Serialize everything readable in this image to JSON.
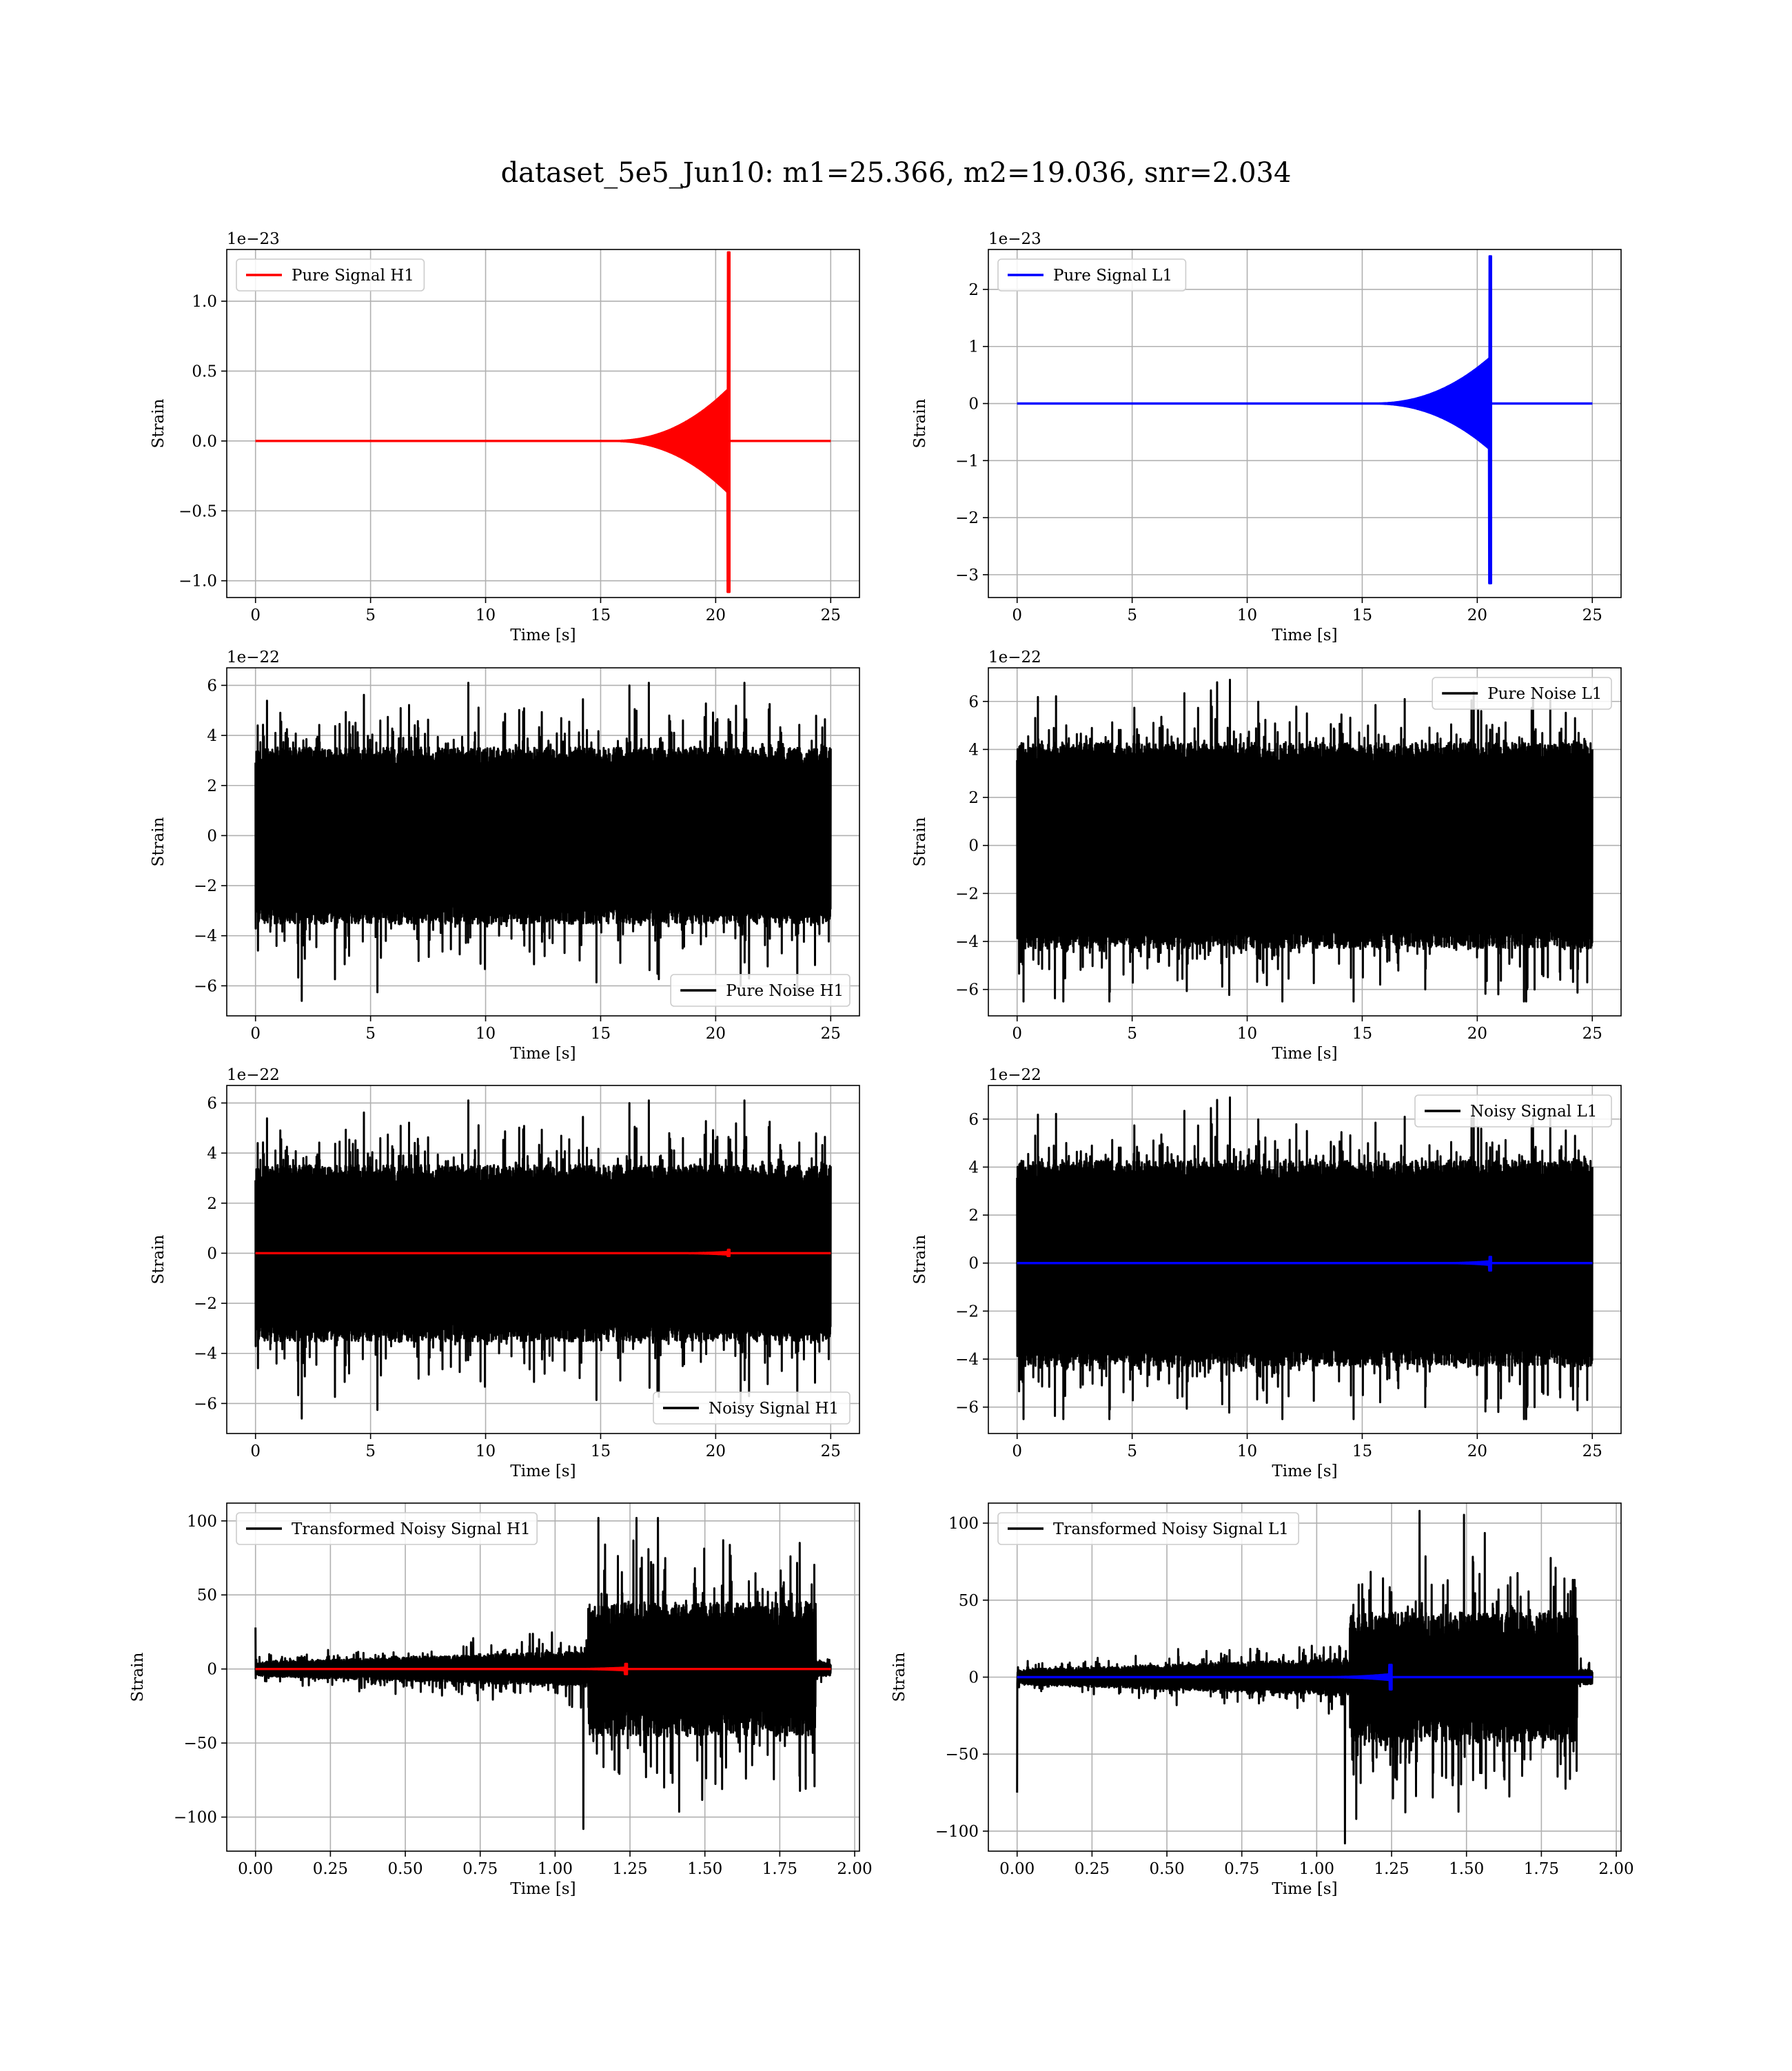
{
  "figure": {
    "title": "dataset_5e5_Jun10: m1=25.366, m2=19.036, snr=2.034"
  },
  "chart_data": [
    {
      "type": "line",
      "panel": "row1-left",
      "title": "",
      "xlabel": "Time [s]",
      "ylabel": "Strain",
      "offset_text": "1e−23",
      "xlim": [
        -1.25,
        26.25
      ],
      "ylim": [
        -1.12,
        1.37
      ],
      "xticks": [
        0,
        5,
        10,
        15,
        20,
        25
      ],
      "xtick_labels": [
        "0",
        "5",
        "10",
        "15",
        "20",
        "25"
      ],
      "yticks": [
        -1.0,
        -0.5,
        0.0,
        0.5,
        1.0
      ],
      "ytick_labels": [
        "−1.0",
        "−0.5",
        "0.0",
        "0.5",
        "1.0"
      ],
      "grid": true,
      "legend_position": "top-left",
      "series": [
        {
          "name": "Pure Signal H1",
          "color": "#ff0000",
          "kind": "chirp",
          "t0": 0,
          "t1": 25,
          "tmerge": 20.6,
          "tstart": 15.5,
          "peak_pos": 1.35,
          "peak_neg": -1.08,
          "env": 0.38
        }
      ]
    },
    {
      "type": "line",
      "panel": "row1-right",
      "title": "",
      "xlabel": "Time [s]",
      "ylabel": "Strain",
      "offset_text": "1e−23",
      "xlim": [
        -1.25,
        26.25
      ],
      "ylim": [
        -3.4,
        2.7
      ],
      "xticks": [
        0,
        5,
        10,
        15,
        20,
        25
      ],
      "xtick_labels": [
        "0",
        "5",
        "10",
        "15",
        "20",
        "25"
      ],
      "yticks": [
        -3,
        -2,
        -1,
        0,
        1,
        2
      ],
      "ytick_labels": [
        "−3",
        "−2",
        "−1",
        "0",
        "1",
        "2"
      ],
      "grid": true,
      "legend_position": "top-left",
      "series": [
        {
          "name": "Pure Signal L1",
          "color": "#0000ff",
          "kind": "chirp",
          "t0": 0,
          "t1": 25,
          "tmerge": 20.6,
          "tstart": 15.5,
          "peak_pos": 2.58,
          "peak_neg": -3.15,
          "env": 0.82
        }
      ]
    },
    {
      "type": "line",
      "panel": "row2-left",
      "title": "",
      "xlabel": "Time [s]",
      "ylabel": "Strain",
      "offset_text": "1e−22",
      "xlim": [
        -1.25,
        26.25
      ],
      "ylim": [
        -7.2,
        6.7
      ],
      "xticks": [
        0,
        5,
        10,
        15,
        20,
        25
      ],
      "xtick_labels": [
        "0",
        "5",
        "10",
        "15",
        "20",
        "25"
      ],
      "yticks": [
        -6,
        -4,
        -2,
        0,
        2,
        4,
        6
      ],
      "ytick_labels": [
        "−6",
        "−4",
        "−2",
        "0",
        "2",
        "4",
        "6"
      ],
      "grid": true,
      "legend_position": "bottom-right",
      "series": [
        {
          "name": "Pure Noise H1",
          "color": "#000000",
          "kind": "noise",
          "t0": 0,
          "t1": 25,
          "core": 3.2,
          "spike_max": 6.1,
          "spike_min": -6.6,
          "seed": 11
        }
      ]
    },
    {
      "type": "line",
      "panel": "row2-right",
      "title": "",
      "xlabel": "Time [s]",
      "ylabel": "Strain",
      "offset_text": "1e−22",
      "xlim": [
        -1.25,
        26.25
      ],
      "ylim": [
        -7.1,
        7.4
      ],
      "xticks": [
        0,
        5,
        10,
        15,
        20,
        25
      ],
      "xtick_labels": [
        "0",
        "5",
        "10",
        "15",
        "20",
        "25"
      ],
      "yticks": [
        -6,
        -4,
        -2,
        0,
        2,
        4,
        6
      ],
      "ytick_labels": [
        "−6",
        "−4",
        "−2",
        "0",
        "2",
        "4",
        "6"
      ],
      "grid": true,
      "legend_position": "top-right",
      "series": [
        {
          "name": "Pure Noise L1",
          "color": "#000000",
          "kind": "noise",
          "t0": 0,
          "t1": 25,
          "core": 3.9,
          "spike_max": 6.9,
          "spike_min": -6.5,
          "seed": 23
        }
      ]
    },
    {
      "type": "line",
      "panel": "row3-left",
      "title": "",
      "xlabel": "Time [s]",
      "ylabel": "Strain",
      "offset_text": "1e−22",
      "xlim": [
        -1.25,
        26.25
      ],
      "ylim": [
        -7.2,
        6.7
      ],
      "xticks": [
        0,
        5,
        10,
        15,
        20,
        25
      ],
      "xtick_labels": [
        "0",
        "5",
        "10",
        "15",
        "20",
        "25"
      ],
      "yticks": [
        -6,
        -4,
        -2,
        0,
        2,
        4,
        6
      ],
      "ytick_labels": [
        "−6",
        "−4",
        "−2",
        "0",
        "2",
        "4",
        "6"
      ],
      "grid": true,
      "legend_position": "bottom-right",
      "series": [
        {
          "name": "Noisy Signal H1",
          "color": "#000000",
          "kind": "noise",
          "t0": 0,
          "t1": 25,
          "core": 3.2,
          "spike_max": 6.1,
          "spike_min": -6.6,
          "seed": 11
        },
        {
          "color": "#ff0000",
          "kind": "chirp",
          "t0": 0,
          "t1": 25,
          "tmerge": 20.6,
          "tstart": 18.5,
          "peak_pos": 0.14,
          "peak_neg": -0.11,
          "env": 0.06
        }
      ]
    },
    {
      "type": "line",
      "panel": "row3-right",
      "title": "",
      "xlabel": "Time [s]",
      "ylabel": "Strain",
      "offset_text": "1e−22",
      "xlim": [
        -1.25,
        26.25
      ],
      "ylim": [
        -7.1,
        7.4
      ],
      "xticks": [
        0,
        5,
        10,
        15,
        20,
        25
      ],
      "xtick_labels": [
        "0",
        "5",
        "10",
        "15",
        "20",
        "25"
      ],
      "yticks": [
        -6,
        -4,
        -2,
        0,
        2,
        4,
        6
      ],
      "ytick_labels": [
        "−6",
        "−4",
        "−2",
        "0",
        "2",
        "4",
        "6"
      ],
      "grid": true,
      "legend_position": "top-right",
      "series": [
        {
          "name": "Noisy Signal L1",
          "color": "#000000",
          "kind": "noise",
          "t0": 0,
          "t1": 25,
          "core": 3.9,
          "spike_max": 6.9,
          "spike_min": -6.5,
          "seed": 23
        },
        {
          "color": "#0000ff",
          "kind": "chirp",
          "t0": 0,
          "t1": 25,
          "tmerge": 20.6,
          "tstart": 18.5,
          "peak_pos": 0.26,
          "peak_neg": -0.31,
          "env": 0.08
        }
      ]
    },
    {
      "type": "line",
      "panel": "row4-left",
      "title": "",
      "xlabel": "Time [s]",
      "ylabel": "Strain",
      "offset_text": "",
      "xlim": [
        -0.096,
        2.016
      ],
      "ylim": [
        -123,
        112
      ],
      "xticks": [
        0,
        0.25,
        0.5,
        0.75,
        1.0,
        1.25,
        1.5,
        1.75,
        2.0
      ],
      "xtick_labels": [
        "0.00",
        "0.25",
        "0.50",
        "0.75",
        "1.00",
        "1.25",
        "1.50",
        "1.75",
        "2.00"
      ],
      "yticks": [
        -100,
        -50,
        0,
        50,
        100
      ],
      "ytick_labels": [
        "−100",
        "−50",
        "0",
        "50",
        "100"
      ],
      "grid": true,
      "legend_position": "top-left",
      "series": [
        {
          "name": "Transformed Noisy Signal H1",
          "color": "#000000",
          "kind": "whitened",
          "t0": 0,
          "t1": 1.92,
          "tjump": 1.11,
          "tend": 1.87,
          "low": 8,
          "high": 45,
          "spike_max": 102,
          "spike_min": -108,
          "start_spike": 28,
          "seed": 37
        },
        {
          "color": "#ff0000",
          "kind": "chirp",
          "t0": 0,
          "t1": 1.92,
          "tmerge": 1.24,
          "tstart": 1.05,
          "peak_pos": 3.5,
          "peak_neg": -3.5,
          "env": 1.0
        }
      ]
    },
    {
      "type": "line",
      "panel": "row4-right",
      "title": "",
      "xlabel": "Time [s]",
      "ylabel": "Strain",
      "offset_text": "",
      "xlim": [
        -0.096,
        2.016
      ],
      "ylim": [
        -113,
        113
      ],
      "xticks": [
        0,
        0.25,
        0.5,
        0.75,
        1.0,
        1.25,
        1.5,
        1.75,
        2.0
      ],
      "xtick_labels": [
        "0.00",
        "0.25",
        "0.50",
        "0.75",
        "1.00",
        "1.25",
        "1.50",
        "1.75",
        "2.00"
      ],
      "yticks": [
        -100,
        -50,
        0,
        50,
        100
      ],
      "ytick_labels": [
        "−100",
        "−50",
        "0",
        "50",
        "100"
      ],
      "grid": true,
      "legend_position": "top-left",
      "series": [
        {
          "name": "Transformed Noisy Signal L1",
          "color": "#000000",
          "kind": "whitened",
          "t0": 0,
          "t1": 1.92,
          "tjump": 1.11,
          "tend": 1.87,
          "low": 8,
          "high": 42,
          "spike_max": 108,
          "spike_min": -108,
          "start_spike": -75,
          "seed": 53
        },
        {
          "color": "#0000ff",
          "kind": "chirp",
          "t0": 0,
          "t1": 1.92,
          "tmerge": 1.25,
          "tstart": 1.02,
          "peak_pos": 8,
          "peak_neg": -8,
          "env": 2.0
        }
      ]
    }
  ]
}
